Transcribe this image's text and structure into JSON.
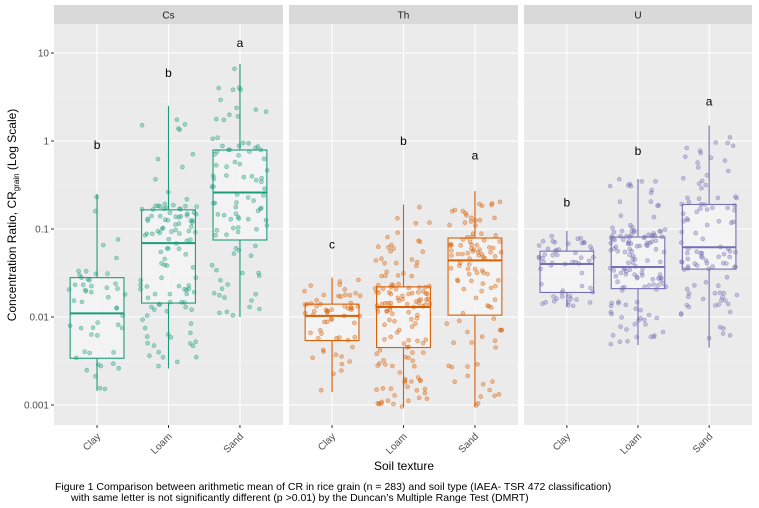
{
  "chart_data": {
    "type": "boxplot",
    "title": "",
    "xlabel": "Soil texture",
    "ylabel": "Concentration Ratio, CR",
    "ylabel_subscript": "grain",
    "ylabel_suffix": " (Log Scale)",
    "yscale": "log10",
    "ylim": [
      0.0007,
      25
    ],
    "yticks": [
      0.001,
      0.01,
      0.1,
      1,
      10
    ],
    "ytick_labels": [
      "0.001",
      "0.01",
      "0.1",
      "1",
      "10"
    ],
    "grid": true,
    "categories": [
      "Clay",
      "Loam",
      "Sand"
    ],
    "facets": [
      {
        "name": "Cs",
        "color": "#1b9e77",
        "groups": [
          {
            "category": "Clay",
            "n": 50,
            "min": 0.00145,
            "q1": 0.0034,
            "median": 0.011,
            "q3": 0.028,
            "max": 0.25,
            "letter": "b",
            "letter_y": 0.9
          },
          {
            "category": "Loam",
            "n": 115,
            "min": 0.0026,
            "q1": 0.0144,
            "median": 0.069,
            "q3": 0.165,
            "max": 2.5,
            "letter": "b",
            "letter_y": 5.9
          },
          {
            "category": "Sand",
            "n": 95,
            "min": 0.01,
            "q1": 0.075,
            "median": 0.26,
            "q3": 0.79,
            "max": 7.5,
            "letter": "a",
            "letter_y": 13
          }
        ]
      },
      {
        "name": "Th",
        "color": "#d95f02",
        "groups": [
          {
            "category": "Clay",
            "n": 60,
            "min": 0.0014,
            "q1": 0.0054,
            "median": 0.0103,
            "q3": 0.014,
            "max": 0.028,
            "letter": "c",
            "letter_y": 0.067
          },
          {
            "category": "Loam",
            "n": 135,
            "min": 0.00095,
            "q1": 0.0045,
            "median": 0.013,
            "q3": 0.022,
            "max": 0.19,
            "letter": "b",
            "letter_y": 1.0
          },
          {
            "category": "Sand",
            "n": 105,
            "min": 0.00096,
            "q1": 0.0105,
            "median": 0.044,
            "q3": 0.079,
            "max": 0.27,
            "letter": "a",
            "letter_y": 0.68
          }
        ]
      },
      {
        "name": "U",
        "color": "#7570b3",
        "groups": [
          {
            "category": "Clay",
            "n": 55,
            "min": 0.013,
            "q1": 0.019,
            "median": 0.04,
            "q3": 0.056,
            "max": 0.095,
            "letter": "b",
            "letter_y": 0.2
          },
          {
            "category": "Loam",
            "n": 135,
            "min": 0.0048,
            "q1": 0.021,
            "median": 0.037,
            "q3": 0.081,
            "max": 0.37,
            "letter": "b",
            "letter_y": 0.77
          },
          {
            "category": "Sand",
            "n": 105,
            "min": 0.0045,
            "q1": 0.035,
            "median": 0.062,
            "q3": 0.19,
            "max": 1.5,
            "letter": "a",
            "letter_y": 2.8
          }
        ]
      }
    ]
  },
  "caption": {
    "line1": "Figure 1 Comparison between arithmetic mean of CR in rice grain (n = 283) and soil type (IAEA- TSR 472 classification)",
    "line2": "with same letter is not significantly different (p >0.01)  by the Duncan’s Multiple Range Test (DMRT)"
  }
}
